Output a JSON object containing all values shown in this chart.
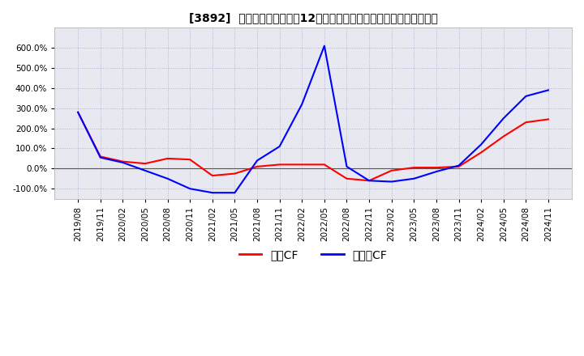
{
  "title": "[3892]  キャッシュフローの12か月移動合計の対前年同期増減率の推移",
  "ylim": [
    -1.5,
    7.0
  ],
  "yticks": [
    -1.0,
    0.0,
    1.0,
    2.0,
    3.0,
    4.0,
    5.0,
    6.0
  ],
  "legend_labels": [
    "営業CF",
    "フリーCF"
  ],
  "legend_colors": [
    "#ff0000",
    "#0000ff"
  ],
  "x_labels": [
    "2019/08",
    "2019/11",
    "2020/02",
    "2020/05",
    "2020/08",
    "2020/11",
    "2021/02",
    "2021/05",
    "2021/08",
    "2021/11",
    "2022/02",
    "2022/05",
    "2022/08",
    "2022/11",
    "2023/02",
    "2023/05",
    "2023/08",
    "2023/11",
    "2024/02",
    "2024/05",
    "2024/08",
    "2024/11"
  ],
  "eigyo_cf": [
    2.8,
    0.6,
    0.35,
    0.25,
    0.5,
    0.45,
    -0.35,
    -0.25,
    0.1,
    0.2,
    0.2,
    0.2,
    -0.5,
    -0.6,
    -0.1,
    0.05,
    0.05,
    0.1,
    0.8,
    1.6,
    2.3,
    2.45
  ],
  "free_cf": [
    2.8,
    0.55,
    0.3,
    -0.1,
    -0.5,
    -1.0,
    -1.2,
    -1.2,
    0.4,
    1.1,
    3.2,
    6.1,
    0.1,
    -0.6,
    -0.65,
    -0.5,
    -0.15,
    0.15,
    1.2,
    2.5,
    3.6,
    3.9
  ],
  "background_color": "#ffffff",
  "grid_color": "#aaaacc",
  "plot_bg_color": "#e8e8f0",
  "zero_line_color": "#555555"
}
